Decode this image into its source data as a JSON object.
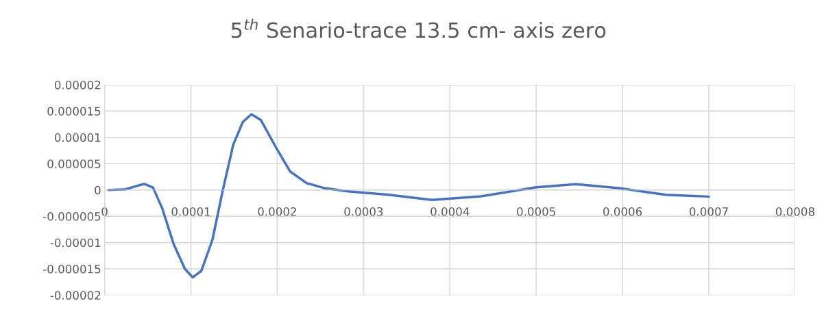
{
  "chart_data": {
    "type": "line",
    "title": "5$^{th}$ Senario-trace 13.5 cm- axis zero",
    "x": [
      4.5e-06,
      2.4e-05,
      4.6e-05,
      5.6e-05,
      6.65e-05,
      8e-05,
      9.3e-05,
      0.000102,
      0.000112,
      0.000125,
      0.000137,
      0.000149,
      0.00016,
      0.00017,
      0.000181,
      0.0001995,
      0.000215,
      0.000234,
      0.000255,
      0.000282,
      0.0003295,
      0.000379,
      0.000436,
      0.0005,
      0.000546,
      0.000596,
      0.00065,
      0.0007
    ],
    "series": [
      {
        "color": "#4472c4",
        "values": [
          0,
          1.3e-07,
          1.16e-06,
          4.7e-07,
          -3.4e-06,
          -1.03e-05,
          -1.5e-05,
          -1.66e-05,
          -1.54e-05,
          -9.4e-06,
          0,
          8.6e-06,
          1.29e-05,
          1.44e-05,
          1.33e-05,
          7.8e-06,
          3.5e-06,
          1.3e-06,
          3.4e-07,
          -2.6e-07,
          -9.2e-07,
          -1.9e-06,
          -1.2e-06,
          5.2e-07,
          1.1e-06,
          3.5e-07,
          -9.2e-07,
          -1.26e-06
        ]
      }
    ],
    "xlim": [
      0,
      0.0008
    ],
    "xticks": [
      {
        "value": 0,
        "label": "0"
      },
      {
        "value": 0.0001,
        "label": "0.0001"
      },
      {
        "value": 0.0002,
        "label": "0.0002"
      },
      {
        "value": 0.0003,
        "label": "0.0003"
      },
      {
        "value": 0.0004,
        "label": "0.0004"
      },
      {
        "value": 0.0005,
        "label": "0.0005"
      },
      {
        "value": 0.0006,
        "label": "0.0006"
      },
      {
        "value": 0.0007,
        "label": "0.0007"
      },
      {
        "value": 0.0008,
        "label": "0.0008"
      }
    ],
    "ylim": [
      -2e-05,
      2e-05
    ],
    "yticks": [
      {
        "value": -2e-05,
        "label": "-0.00002"
      },
      {
        "value": -1.5e-05,
        "label": "-0.000015"
      },
      {
        "value": -1e-05,
        "label": "-0.00001"
      },
      {
        "value": -5e-06,
        "label": "-0.000005"
      },
      {
        "value": 0,
        "label": "0"
      },
      {
        "value": 5e-06,
        "label": "0.000005"
      },
      {
        "value": 1e-05,
        "label": "0.00001"
      },
      {
        "value": 1.5e-05,
        "label": "0.000015"
      },
      {
        "value": 2e-05,
        "label": "0.00002"
      }
    ],
    "grid": true,
    "marker": "none",
    "line_style": "solid"
  }
}
